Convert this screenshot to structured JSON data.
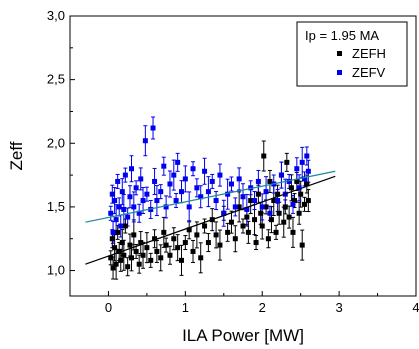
{
  "chart_data": {
    "type": "scatter",
    "title": "",
    "xlabel": "ILA Power [MW]",
    "ylabel": "Zeff",
    "xlim": [
      -0.5,
      4.0
    ],
    "ylim": [
      0.8,
      3.0
    ],
    "xticks": [
      0,
      1,
      2,
      3,
      4
    ],
    "xtick_labels": [
      "0",
      "1",
      "2",
      "3",
      "4"
    ],
    "yticks": [
      1.0,
      1.5,
      2.0,
      2.5,
      3.0
    ],
    "ytick_labels": [
      "1,0",
      "1,5",
      "2,0",
      "2,5",
      "3,0"
    ],
    "grid": false,
    "legend": {
      "placement": "top-right",
      "title": "Ip = 1.95 MA",
      "entries": [
        "ZEFH",
        "ZEFV"
      ]
    },
    "series": [
      {
        "name": "ZEFH",
        "color": "#000000",
        "marker": "square",
        "error_bars": true,
        "points": [
          [
            0.03,
            1.1
          ],
          [
            0.05,
            1.25
          ],
          [
            0.06,
            1.02
          ],
          [
            0.08,
            1.18
          ],
          [
            0.1,
            1.05
          ],
          [
            0.12,
            1.3
          ],
          [
            0.14,
            1.15
          ],
          [
            0.16,
            1.08
          ],
          [
            0.18,
            1.22
          ],
          [
            0.2,
            1.12
          ],
          [
            0.22,
            1.35
          ],
          [
            0.25,
            1.03
          ],
          [
            0.28,
            1.2
          ],
          [
            0.3,
            1.1
          ],
          [
            0.33,
            1.28
          ],
          [
            0.36,
            1.15
          ],
          [
            0.4,
            1.05
          ],
          [
            0.42,
            1.22
          ],
          [
            0.45,
            1.12
          ],
          [
            0.5,
            1.18
          ],
          [
            0.55,
            1.08
          ],
          [
            0.6,
            1.25
          ],
          [
            0.63,
            1.15
          ],
          [
            0.68,
            1.1
          ],
          [
            0.72,
            1.3
          ],
          [
            0.75,
            1.2
          ],
          [
            0.8,
            1.12
          ],
          [
            0.85,
            1.25
          ],
          [
            0.9,
            1.18
          ],
          [
            0.95,
            1.08
          ],
          [
            1.0,
            1.22
          ],
          [
            1.05,
            1.32
          ],
          [
            1.1,
            1.15
          ],
          [
            1.15,
            1.28
          ],
          [
            1.2,
            1.1
          ],
          [
            1.25,
            1.35
          ],
          [
            1.3,
            1.22
          ],
          [
            1.35,
            1.4
          ],
          [
            1.4,
            1.28
          ],
          [
            1.45,
            1.2
          ],
          [
            1.5,
            1.45
          ],
          [
            1.55,
            1.3
          ],
          [
            1.6,
            1.38
          ],
          [
            1.65,
            1.25
          ],
          [
            1.7,
            1.5
          ],
          [
            1.75,
            1.35
          ],
          [
            1.8,
            1.42
          ],
          [
            1.82,
            1.3
          ],
          [
            1.85,
            1.55
          ],
          [
            1.9,
            1.4
          ],
          [
            1.92,
            1.22
          ],
          [
            1.95,
            1.6
          ],
          [
            1.98,
            1.45
          ],
          [
            2.0,
            1.35
          ],
          [
            2.02,
            1.9
          ],
          [
            2.05,
            1.5
          ],
          [
            2.08,
            1.25
          ],
          [
            2.1,
            1.7
          ],
          [
            2.12,
            1.4
          ],
          [
            2.15,
            1.55
          ],
          [
            2.18,
            1.3
          ],
          [
            2.2,
            1.6
          ],
          [
            2.22,
            1.45
          ],
          [
            2.25,
            1.75
          ],
          [
            2.28,
            1.38
          ],
          [
            2.3,
            1.5
          ],
          [
            2.32,
            1.85
          ],
          [
            2.35,
            1.42
          ],
          [
            2.38,
            1.65
          ],
          [
            2.4,
            1.3
          ],
          [
            2.42,
            1.55
          ],
          [
            2.45,
            1.7
          ],
          [
            2.48,
            1.45
          ],
          [
            2.5,
            1.6
          ],
          [
            2.52,
            1.2
          ],
          [
            2.55,
            1.52
          ],
          [
            2.58,
            1.68
          ],
          [
            2.6,
            1.55
          ]
        ]
      },
      {
        "name": "ZEFV",
        "color": "#0000ee",
        "marker": "square",
        "error_bars": true,
        "points": [
          [
            0.03,
            1.45
          ],
          [
            0.05,
            1.6
          ],
          [
            0.06,
            1.3
          ],
          [
            0.08,
            1.55
          ],
          [
            0.1,
            1.4
          ],
          [
            0.12,
            1.7
          ],
          [
            0.14,
            1.5
          ],
          [
            0.16,
            1.35
          ],
          [
            0.18,
            1.62
          ],
          [
            0.2,
            1.48
          ],
          [
            0.22,
            1.75
          ],
          [
            0.25,
            1.42
          ],
          [
            0.28,
            1.58
          ],
          [
            0.3,
            1.8
          ],
          [
            0.33,
            1.5
          ],
          [
            0.36,
            1.65
          ],
          [
            0.4,
            1.45
          ],
          [
            0.42,
            1.72
          ],
          [
            0.45,
            1.55
          ],
          [
            0.48,
            2.02
          ],
          [
            0.5,
            1.6
          ],
          [
            0.55,
            1.48
          ],
          [
            0.58,
            2.12
          ],
          [
            0.6,
            1.7
          ],
          [
            0.63,
            1.55
          ],
          [
            0.68,
            1.62
          ],
          [
            0.72,
            1.82
          ],
          [
            0.75,
            1.5
          ],
          [
            0.8,
            1.68
          ],
          [
            0.85,
            1.75
          ],
          [
            0.88,
            1.55
          ],
          [
            0.9,
            1.85
          ],
          [
            0.95,
            1.62
          ],
          [
            1.0,
            1.72
          ],
          [
            1.05,
            1.5
          ],
          [
            1.1,
            1.8
          ],
          [
            1.15,
            1.65
          ],
          [
            1.2,
            1.58
          ],
          [
            1.25,
            1.78
          ],
          [
            1.3,
            1.62
          ],
          [
            1.35,
            1.7
          ],
          [
            1.4,
            1.55
          ],
          [
            1.45,
            1.75
          ],
          [
            1.5,
            1.45
          ],
          [
            1.55,
            1.6
          ],
          [
            1.6,
            1.68
          ],
          [
            1.65,
            1.5
          ],
          [
            1.7,
            1.72
          ],
          [
            1.75,
            1.58
          ],
          [
            1.8,
            1.48
          ],
          [
            1.85,
            1.65
          ],
          [
            1.9,
            1.55
          ],
          [
            1.95,
            1.7
          ],
          [
            2.0,
            1.5
          ],
          [
            2.05,
            1.62
          ],
          [
            2.1,
            1.45
          ],
          [
            2.15,
            1.68
          ],
          [
            2.2,
            1.55
          ],
          [
            2.25,
            1.75
          ],
          [
            2.3,
            1.6
          ],
          [
            2.35,
            1.7
          ],
          [
            2.4,
            1.52
          ],
          [
            2.45,
            1.8
          ],
          [
            2.48,
            1.65
          ],
          [
            2.52,
            1.85
          ],
          [
            2.55,
            1.72
          ],
          [
            2.58,
            1.9
          ],
          [
            2.6,
            1.78
          ]
        ]
      }
    ],
    "fit_lines": [
      {
        "series": "ZEFH",
        "color": "#000000",
        "x": [
          -0.3,
          2.95
        ],
        "y": [
          1.05,
          1.74
        ]
      },
      {
        "series": "ZEFV",
        "color": "#1a8a9a",
        "x": [
          -0.3,
          2.95
        ],
        "y": [
          1.38,
          1.78
        ]
      }
    ]
  }
}
